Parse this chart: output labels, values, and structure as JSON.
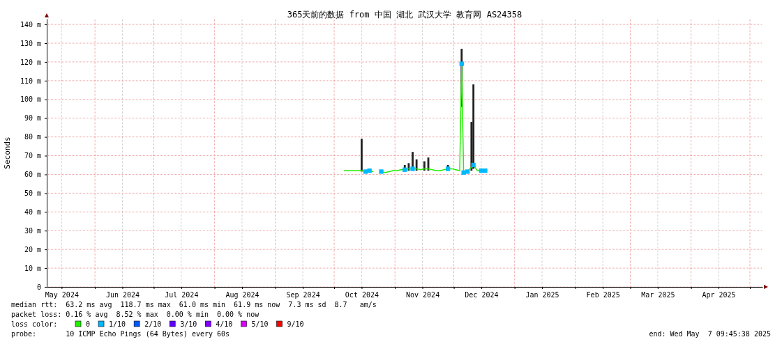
{
  "chart_data": {
    "type": "line",
    "title": "365天前的数据 from 中国 湖北 武汉大学 教育网 AS24358",
    "ylabel": "Seconds",
    "x": [
      "2024-10-06",
      "2024-10-08",
      "2024-10-10",
      "2024-10-12",
      "2024-10-14",
      "2024-10-15",
      "2024-10-17",
      "2024-10-19",
      "2024-10-21",
      "2024-10-23",
      "2024-10-25",
      "2024-10-27",
      "2024-10-29",
      "2024-10-31",
      "2024-11-02",
      "2024-11-04",
      "2024-11-06",
      "2024-11-08",
      "2024-11-10",
      "2024-11-12",
      "2024-11-14",
      "2024-11-16",
      "2024-11-18",
      "2024-11-20",
      "2024-11-22",
      "2024-11-24",
      "2024-11-26",
      "2024-11-28",
      "2024-11-30",
      "2024-12-02",
      "2024-12-04",
      "2024-12-05",
      "2024-12-06",
      "2024-12-08",
      "2024-12-10",
      "2024-12-11",
      "2024-12-13",
      "2024-12-15",
      "2024-12-17"
    ],
    "series": [
      {
        "type": "bar",
        "color": "#222222",
        "base": [
          null,
          null,
          null,
          null,
          null,
          61.5,
          null,
          null,
          null,
          null,
          null,
          null,
          null,
          null,
          null,
          null,
          62,
          62,
          62,
          62,
          null,
          62,
          62,
          null,
          null,
          null,
          null,
          62,
          null,
          null,
          null,
          96,
          null,
          null,
          62,
          63,
          null,
          null,
          null
        ],
        "values": [
          null,
          null,
          null,
          null,
          null,
          17.5,
          null,
          null,
          null,
          null,
          null,
          null,
          null,
          null,
          null,
          null,
          3,
          4,
          10,
          6,
          null,
          5,
          7,
          null,
          null,
          null,
          null,
          3,
          null,
          null,
          null,
          31,
          null,
          null,
          26,
          45,
          null,
          null,
          null
        ]
      },
      {
        "name": "0",
        "color": "#22ee00",
        "values": [
          62,
          62,
          62,
          62,
          62,
          62,
          61.5,
          62,
          61.5,
          null,
          61.5,
          61,
          61.5,
          62,
          62,
          62.5,
          62.5,
          63,
          63,
          63,
          62.5,
          63,
          63,
          62.5,
          62,
          62,
          62.5,
          63,
          63,
          62.5,
          62,
          119,
          61,
          61.5,
          64,
          65,
          62,
          62,
          62
        ]
      },
      {
        "name": "1/10",
        "type": "scatter",
        "marker": "square",
        "color": "#00b8ff",
        "values": [
          null,
          null,
          null,
          null,
          null,
          null,
          61.5,
          62,
          null,
          null,
          61.5,
          null,
          null,
          null,
          null,
          null,
          62.5,
          null,
          63,
          null,
          null,
          null,
          null,
          null,
          null,
          null,
          null,
          63,
          null,
          null,
          null,
          119,
          61,
          61.5,
          null,
          65,
          null,
          62,
          62
        ]
      },
      {
        "name": "2/10",
        "type": "scatter",
        "marker": "square",
        "color": "#0059ff",
        "values": [
          null,
          null,
          null,
          null,
          null,
          null,
          null,
          null,
          null,
          null,
          null,
          null,
          null,
          null,
          null,
          null,
          null,
          null,
          null,
          null,
          null,
          null,
          null,
          null,
          null,
          null,
          null,
          null,
          null,
          null,
          null,
          null,
          null,
          null,
          null,
          null,
          null,
          null,
          null
        ]
      },
      {
        "name": "3/10",
        "type": "scatter",
        "marker": "square",
        "color": "#5e00ff",
        "values": [
          null,
          null,
          null,
          null,
          null,
          null,
          null,
          null,
          null,
          null,
          null,
          null,
          null,
          null,
          null,
          null,
          null,
          null,
          null,
          null,
          null,
          null,
          null,
          null,
          null,
          null,
          null,
          null,
          null,
          null,
          null,
          null,
          null,
          null,
          null,
          null,
          null,
          null,
          null
        ]
      },
      {
        "name": "4/10",
        "type": "scatter",
        "marker": "square",
        "color": "#7e00ff",
        "values": [
          null,
          null,
          null,
          null,
          null,
          null,
          null,
          null,
          null,
          null,
          null,
          null,
          null,
          null,
          null,
          null,
          null,
          null,
          null,
          null,
          null,
          null,
          null,
          null,
          null,
          null,
          null,
          null,
          null,
          null,
          null,
          null,
          null,
          null,
          null,
          null,
          null,
          null,
          null
        ]
      },
      {
        "name": "5/10",
        "type": "scatter",
        "marker": "square",
        "color": "#dd00ff",
        "values": [
          null,
          null,
          null,
          null,
          null,
          null,
          null,
          null,
          null,
          null,
          null,
          null,
          null,
          null,
          null,
          null,
          null,
          null,
          null,
          null,
          null,
          null,
          null,
          null,
          null,
          null,
          null,
          null,
          null,
          null,
          null,
          null,
          null,
          null,
          null,
          null,
          null,
          null,
          null
        ]
      },
      {
        "name": "9/10",
        "type": "scatter",
        "marker": "square",
        "color": "#ff0000",
        "values": [
          null,
          null,
          null,
          null,
          null,
          null,
          null,
          null,
          null,
          null,
          null,
          null,
          null,
          null,
          null,
          null,
          null,
          null,
          null,
          null,
          null,
          null,
          null,
          null,
          null,
          null,
          null,
          null,
          null,
          null,
          null,
          null,
          null,
          null,
          null,
          null,
          null,
          null,
          null
        ]
      }
    ],
    "xlim": [
      "2024-05-07T09:45",
      "2025-05-07T09:45"
    ],
    "xticks": [
      {
        "value": "2024-05-15",
        "label": "May 2024"
      },
      {
        "value": "2024-06-01",
        "label": null
      },
      {
        "value": "2024-06-15",
        "label": "Jun 2024"
      },
      {
        "value": "2024-07-01",
        "label": null
      },
      {
        "value": "2024-07-15",
        "label": "Jul 2024"
      },
      {
        "value": "2024-08-01",
        "label": null
      },
      {
        "value": "2024-08-15",
        "label": "Aug 2024"
      },
      {
        "value": "2024-09-01",
        "label": null
      },
      {
        "value": "2024-09-15",
        "label": "Sep 2024"
      },
      {
        "value": "2024-10-01",
        "label": null
      },
      {
        "value": "2024-10-15",
        "label": "Oct 2024"
      },
      {
        "value": "2024-11-01",
        "label": null
      },
      {
        "value": "2024-11-15",
        "label": "Nov 2024"
      },
      {
        "value": "2024-12-01",
        "label": null
      },
      {
        "value": "2024-12-15",
        "label": "Dec 2024"
      },
      {
        "value": "2025-01-01",
        "label": null
      },
      {
        "value": "2025-01-15",
        "label": "Jan 2025"
      },
      {
        "value": "2025-02-01",
        "label": null
      },
      {
        "value": "2025-02-15",
        "label": "Feb 2025"
      },
      {
        "value": "2025-03-01",
        "label": null
      },
      {
        "value": "2025-03-15",
        "label": "Mar 2025"
      },
      {
        "value": "2025-04-01",
        "label": null
      },
      {
        "value": "2025-04-15",
        "label": "Apr 2025"
      },
      {
        "value": "2025-05-01",
        "label": null
      }
    ],
    "ylim": [
      0,
      143
    ],
    "yticks": [
      0,
      {
        "value": 10,
        "label": "10 m"
      },
      {
        "value": 20,
        "label": "20 m"
      },
      {
        "value": 30,
        "label": "30 m"
      },
      {
        "value": 40,
        "label": "40 m"
      },
      {
        "value": 50,
        "label": "50 m"
      },
      {
        "value": 60,
        "label": "60 m"
      },
      {
        "value": 70,
        "label": "70 m"
      },
      {
        "value": 80,
        "label": "80 m"
      },
      {
        "value": 90,
        "label": "90 m"
      },
      {
        "value": 100,
        "label": "100 m"
      },
      {
        "value": 110,
        "label": "110 m"
      },
      {
        "value": 120,
        "label": "120 m"
      },
      {
        "value": 130,
        "label": "130 m"
      },
      {
        "value": 140,
        "label": "140 m"
      }
    ],
    "grid": true,
    "legend": "bottom left",
    "legend_title": "loss color:",
    "annotations": [
      "median rtt:  63.2 ms avg  118.7 ms max  61.0 ms min  61.9 ms now  7.3 ms sd  8.7   am/s",
      "packet loss: 0.16 % avg  8.52 % max  0.00 % min  0.00 % now",
      "probe:       10 ICMP Echo Pings (64 Bytes) every 60s",
      "end: Wed May  7 09:45:38 2025"
    ]
  }
}
